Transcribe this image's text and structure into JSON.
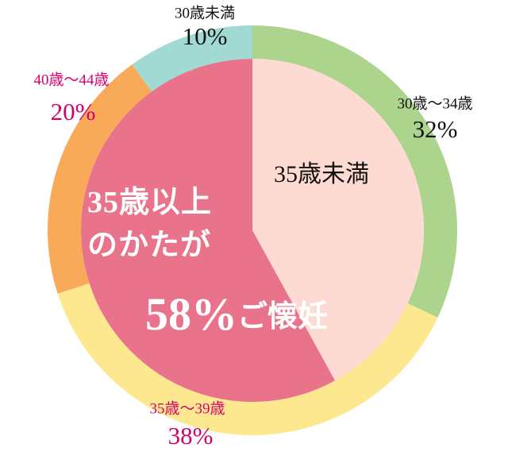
{
  "chart_data": {
    "type": "pie",
    "outer": {
      "categories": [
        "30歳〜34歳",
        "35歳〜39歳",
        "40歳〜44歳",
        "30歳未満"
      ],
      "values": [
        32,
        38,
        20,
        10
      ],
      "value_labels": [
        "32%",
        "38%",
        "20%",
        "10%"
      ],
      "colors": [
        "#acd48c",
        "#fde78f",
        "#f9aa58",
        "#a1dad3"
      ],
      "label_colors": [
        "#111111",
        "#d4006e",
        "#d4006e",
        "#111111"
      ]
    },
    "inner": {
      "categories": [
        "35歳未満",
        "35歳以上のかたが"
      ],
      "values": [
        42,
        58
      ],
      "value_labels": [
        null,
        "58%"
      ],
      "colors": [
        "#fddbd2",
        "#e8738a"
      ]
    },
    "annotation": "ご懐妊"
  }
}
